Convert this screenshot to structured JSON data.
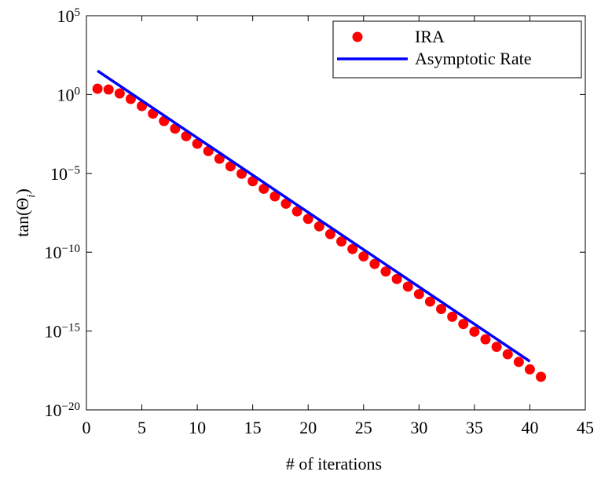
{
  "chart_data": {
    "type": "scatter",
    "x_label": "# of iterations",
    "y_label": "tan(Θ_i)",
    "xlim": [
      0,
      45
    ],
    "xticks": [
      0,
      5,
      10,
      15,
      20,
      25,
      30,
      35,
      40,
      45
    ],
    "ylim": [
      1e-20,
      100000
    ],
    "yscale": "log",
    "yticks": [
      {
        "value": 1e-20,
        "label": "10^−20"
      },
      {
        "value": 1e-15,
        "label": "10^−15"
      },
      {
        "value": 1e-10,
        "label": "10^−10"
      },
      {
        "value": 1e-05,
        "label": "10^−5"
      },
      {
        "value": 1,
        "label": "10^0"
      },
      {
        "value": 100000,
        "label": "10^5"
      }
    ],
    "legend": "upper right",
    "series": [
      {
        "name": "IRA",
        "color": "#ff0000",
        "style": "markers",
        "x": [
          1,
          2,
          3,
          4,
          5,
          6,
          7,
          8,
          9,
          10,
          11,
          12,
          13,
          14,
          15,
          16,
          17,
          18,
          19,
          20,
          21,
          22,
          23,
          24,
          25,
          26,
          27,
          28,
          29,
          30,
          31,
          32,
          33,
          34,
          35,
          36,
          37,
          38,
          39,
          40,
          41
        ],
        "values": [
          2.34,
          2.09,
          1.17,
          0.525,
          0.186,
          0.0617,
          0.0209,
          0.00692,
          0.00229,
          0.00076,
          0.00026,
          8.5e-05,
          2.8e-05,
          9.5e-06,
          3.2e-06,
          1.05e-06,
          3.5e-07,
          1.2e-07,
          3.9e-08,
          1.3e-08,
          4.4e-09,
          1.4e-09,
          4.8e-10,
          1.6e-10,
          5.4e-11,
          1.8e-11,
          6e-12,
          2e-12,
          6.6e-13,
          2.2e-13,
          7.4e-14,
          2.5e-14,
          8.1e-15,
          2.8e-15,
          9.1e-16,
          3e-16,
          1e-16,
          3.4e-17,
          1.1e-17,
          3.7e-18,
          1.26e-18
        ]
      },
      {
        "name": "Asymptotic Rate",
        "color": "#0000ff",
        "style": "line",
        "x": [
          1,
          40
        ],
        "values": [
          32,
          1.2e-17
        ]
      }
    ]
  }
}
